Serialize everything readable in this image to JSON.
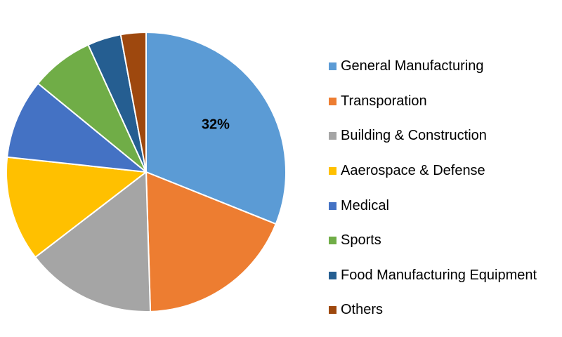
{
  "chart_data": {
    "type": "pie",
    "start_angle": "12 o'clock",
    "direction": "clockwise",
    "slices": [
      {
        "label": "General Manufacturing",
        "value": 32,
        "color": "#5B9BD5",
        "data_label": "32%"
      },
      {
        "label": "Transporation",
        "value": 19,
        "color": "#ED7D31"
      },
      {
        "label": "Building & Construction",
        "value": 15.5,
        "color": "#A5A5A5"
      },
      {
        "label": "Aaerospace & Defense",
        "value": 12.5,
        "color": "#FFC000"
      },
      {
        "label": "Medical",
        "value": 9.5,
        "color": "#4472C4"
      },
      {
        "label": "Sports",
        "value": 7.5,
        "color": "#70AD47"
      },
      {
        "label": "Food Manufacturing Equipment",
        "value": 4,
        "color": "#255E91"
      },
      {
        "label": "Others",
        "value": 3,
        "color": "#9E480E"
      }
    ],
    "legend_position": "right"
  }
}
